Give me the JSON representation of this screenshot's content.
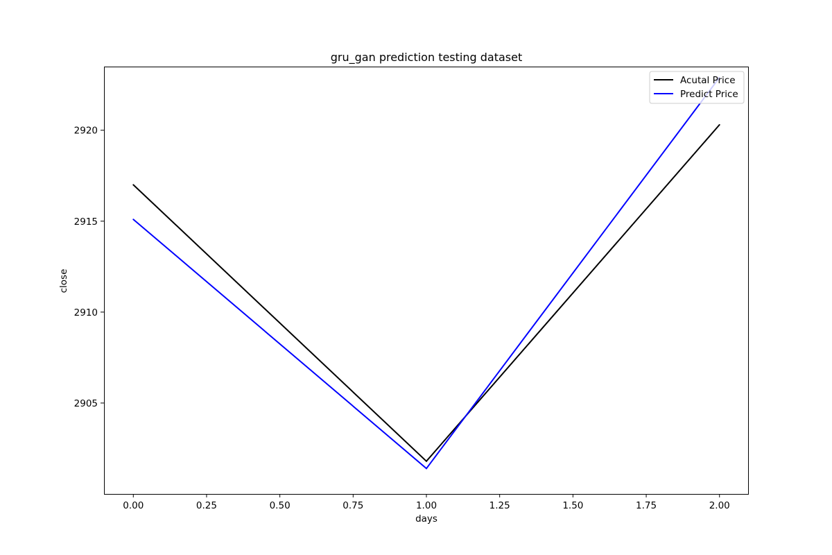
{
  "chart_data": {
    "type": "line",
    "title": "gru_gan prediction testing dataset",
    "xlabel": "days",
    "ylabel": "close",
    "x": [
      0,
      1,
      2
    ],
    "xlim": [
      -0.1,
      2.1
    ],
    "ylim": [
      2900.0,
      2923.5
    ],
    "xticks": [
      0.0,
      0.25,
      0.5,
      0.75,
      1.0,
      1.25,
      1.5,
      1.75,
      2.0
    ],
    "xtick_labels": [
      "0.00",
      "0.25",
      "0.50",
      "0.75",
      "1.00",
      "1.25",
      "1.50",
      "1.75",
      "2.00"
    ],
    "yticks": [
      2905,
      2910,
      2915,
      2920
    ],
    "ytick_labels": [
      "2905",
      "2910",
      "2915",
      "2920"
    ],
    "grid": false,
    "legend_position": "top-right",
    "series": [
      {
        "name": "Acutal Price",
        "color": "#000000",
        "values": [
          2917.0,
          2901.8,
          2920.3
        ]
      },
      {
        "name": "Predict Price",
        "color": "#0000ff",
        "values": [
          2915.1,
          2901.4,
          2922.9
        ]
      }
    ]
  }
}
